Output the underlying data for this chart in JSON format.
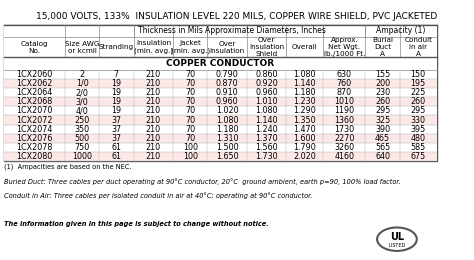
{
  "title": "15,000 VOLTS, 133%  INSULATION LEVEL 220 MILS, COPPER WIRE SHIELD, PVC JACKETED",
  "section_label": "COPPER CONDUCTOR",
  "col_headers_line1": [
    "Catalog",
    "Size AWG",
    "Stranding",
    "Thickness in Mils",
    "",
    "Approximate Diameters, Inches",
    "",
    "",
    "Approx.",
    "Ampacity (1)",
    ""
  ],
  "col_headers_main": [
    "Catalog\nNo.",
    "Size AWG\nor kcmil",
    "Stranding",
    "Insulation\n(min. avg.)",
    "Jacket\n(min. avg.)",
    "Over\nInsulation",
    "Over\nInsulation\nShield",
    "Overall",
    "Approx.\nNet Wgt.\nlb./1000 Ft.",
    "Burial\nDuct\nA",
    "Conduit\nin air\nA"
  ],
  "rows": [
    [
      "1CX2060",
      "2",
      "7",
      "210",
      "70",
      "0.790",
      "0.860",
      "1.080",
      "630",
      "155",
      "150"
    ],
    [
      "1CX2062",
      "1/0",
      "19",
      "210",
      "70",
      "0.870",
      "0.920",
      "1.140",
      "760",
      "200",
      "195"
    ],
    [
      "1CX2064",
      "2/0",
      "19",
      "210",
      "70",
      "0.910",
      "0.960",
      "1.180",
      "870",
      "230",
      "225"
    ],
    [
      "1CX2068",
      "3/0",
      "19",
      "210",
      "70",
      "0.960",
      "1.010",
      "1.230",
      "1010",
      "260",
      "260"
    ],
    [
      "1CX2070",
      "4/0",
      "19",
      "210",
      "70",
      "1.020",
      "1.080",
      "1.290",
      "1190",
      "295",
      "295"
    ],
    [
      "1CX2072",
      "250",
      "37",
      "210",
      "70",
      "1.080",
      "1.140",
      "1.350",
      "1360",
      "325",
      "330"
    ],
    [
      "1CX2074",
      "350",
      "37",
      "210",
      "70",
      "1.180",
      "1.240",
      "1.470",
      "1730",
      "390",
      "395"
    ],
    [
      "1CX2076",
      "500",
      "37",
      "210",
      "70",
      "1.310",
      "1.370",
      "1.600",
      "2270",
      "465",
      "480"
    ],
    [
      "1CX2078",
      "750",
      "61",
      "210",
      "100",
      "1.500",
      "1.560",
      "1.790",
      "3260",
      "565",
      "585"
    ],
    [
      "1CX2080",
      "1000",
      "61",
      "210",
      "100",
      "1.650",
      "1.730",
      "2.020",
      "4160",
      "640",
      "675"
    ]
  ],
  "footnotes": [
    "(1)  Ampacities are based on the NEC.",
    "Buried Duct: Three cables per duct operating at 90°C conductor, 20°C  ground ambient, earth p=90, 100% load factor.",
    "Conduit in Air: Three cables per isolated conduit in air at 40°C; operating at 90°C conductor.",
    "",
    "The information given in this page is subject to change without notice."
  ],
  "row_colors_alt": [
    "#ffffff",
    "#fce8e6"
  ],
  "header_bg": "#ffffff",
  "border_color": "#888888",
  "title_fontsize": 6.5,
  "header_fontsize": 5.5,
  "data_fontsize": 5.8,
  "footnote_fontsize": 4.8,
  "section_fontsize": 6.5
}
